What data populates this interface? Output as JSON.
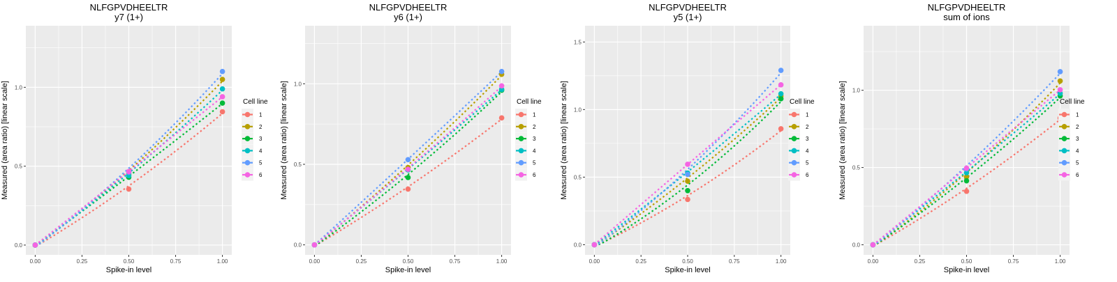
{
  "legend": {
    "title": "Cell line",
    "entries": [
      {
        "label": "1",
        "color": "#F8766D"
      },
      {
        "label": "2",
        "color": "#B79F00"
      },
      {
        "label": "3",
        "color": "#00BA38"
      },
      {
        "label": "4",
        "color": "#00BFC4"
      },
      {
        "label": "5",
        "color": "#619CFF"
      },
      {
        "label": "6",
        "color": "#F564E3"
      }
    ]
  },
  "chart_data": [
    {
      "type": "scatter",
      "title": "NLFGPVDHEELTR",
      "subtitle": "y7 (1+)",
      "xlabel": "Spike-in level",
      "ylabel": "Measured (area ratio) [linear scale]",
      "xlim": [
        -0.05,
        1.05
      ],
      "ylim": [
        -0.062,
        1.39
      ],
      "xticks": [
        0.0,
        0.25,
        0.5,
        0.75,
        1.0
      ],
      "xtick_labels": [
        "0.00",
        "0.25",
        "0.50",
        "0.75",
        "1.00"
      ],
      "yticks": [
        0.0,
        0.5,
        1.0
      ],
      "ytick_labels": [
        "0.0",
        "0.5",
        "1.0"
      ],
      "grid": true,
      "legend_position": "right",
      "fit_style": "dotted",
      "x": [
        0,
        0.5,
        1
      ],
      "series": [
        {
          "name": "1",
          "values": [
            0.0,
            0.355,
            0.845
          ]
        },
        {
          "name": "2",
          "values": [
            0.0,
            0.45,
            1.05
          ]
        },
        {
          "name": "3",
          "values": [
            0.0,
            0.43,
            0.9
          ]
        },
        {
          "name": "4",
          "values": [
            0.0,
            0.44,
            0.99
          ]
        },
        {
          "name": "5",
          "values": [
            0.0,
            0.46,
            1.1
          ]
        },
        {
          "name": "6",
          "values": [
            0.0,
            0.466,
            0.94
          ]
        }
      ]
    },
    {
      "type": "scatter",
      "title": "NLFGPVDHEELTR",
      "subtitle": "y6 (1+)",
      "xlabel": "Spike-in level",
      "ylabel": "Measured (area ratio) [linear scale]",
      "xlim": [
        -0.05,
        1.05
      ],
      "ylim": [
        -0.062,
        1.36
      ],
      "xticks": [
        0.0,
        0.25,
        0.5,
        0.75,
        1.0
      ],
      "xtick_labels": [
        "0.00",
        "0.25",
        "0.50",
        "0.75",
        "1.00"
      ],
      "yticks": [
        0.0,
        0.5,
        1.0
      ],
      "ytick_labels": [
        "0.0",
        "0.5",
        "1.0"
      ],
      "grid": true,
      "legend_position": "right",
      "fit_style": "dotted",
      "x": [
        0,
        0.5,
        1
      ],
      "series": [
        {
          "name": "1",
          "values": [
            0.0,
            0.346,
            0.788
          ]
        },
        {
          "name": "2",
          "values": [
            0.0,
            0.48,
            1.059
          ]
        },
        {
          "name": "3",
          "values": [
            0.0,
            0.418,
            0.96
          ]
        },
        {
          "name": "4",
          "values": [
            0.0,
            0.465,
            0.965
          ]
        },
        {
          "name": "5",
          "values": [
            0.0,
            0.529,
            1.076
          ]
        },
        {
          "name": "6",
          "values": [
            0.0,
            0.469,
            0.987
          ]
        }
      ]
    },
    {
      "type": "scatter",
      "title": "NLFGPVDHEELTR",
      "subtitle": "y5 (1+)",
      "xlabel": "Spike-in level",
      "ylabel": "Measured (area ratio) [linear scale]",
      "xlim": [
        -0.05,
        1.05
      ],
      "ylim": [
        -0.075,
        1.62
      ],
      "xticks": [
        0.0,
        0.25,
        0.5,
        0.75,
        1.0
      ],
      "xtick_labels": [
        "0.00",
        "0.25",
        "0.50",
        "0.75",
        "1.00"
      ],
      "yticks": [
        0.0,
        0.5,
        1.0,
        1.5
      ],
      "ytick_labels": [
        "0.0",
        "0.5",
        "1.0",
        "1.5"
      ],
      "grid": true,
      "legend_position": "right",
      "fit_style": "dotted",
      "x": [
        0,
        0.5,
        1
      ],
      "series": [
        {
          "name": "1",
          "values": [
            0.0,
            0.335,
            0.858
          ]
        },
        {
          "name": "2",
          "values": [
            0.0,
            0.47,
            1.1
          ]
        },
        {
          "name": "3",
          "values": [
            0.0,
            0.4,
            1.08
          ]
        },
        {
          "name": "4",
          "values": [
            0.0,
            0.53,
            1.117
          ]
        },
        {
          "name": "5",
          "values": [
            0.0,
            0.52,
            1.29
          ]
        },
        {
          "name": "6",
          "values": [
            0.0,
            0.595,
            1.183
          ]
        }
      ]
    },
    {
      "type": "scatter",
      "title": "NLFGPVDHEELTR",
      "subtitle": "sum of ions",
      "xlabel": "Spike-in level",
      "ylabel": "Measured (area ratio) [linear scale]",
      "xlim": [
        -0.05,
        1.05
      ],
      "ylim": [
        -0.065,
        1.417
      ],
      "xticks": [
        0.0,
        0.25,
        0.5,
        0.75,
        1.0
      ],
      "xtick_labels": [
        "0.00",
        "0.25",
        "0.50",
        "0.75",
        "1.00"
      ],
      "yticks": [
        0.0,
        0.5,
        1.0
      ],
      "ytick_labels": [
        "0.0",
        "0.5",
        "1.0"
      ],
      "grid": true,
      "legend_position": "right",
      "fit_style": "dotted",
      "x": [
        0,
        0.5,
        1
      ],
      "series": [
        {
          "name": "1",
          "values": [
            0.0,
            0.346,
            0.82
          ]
        },
        {
          "name": "2",
          "values": [
            0.0,
            0.44,
            1.06
          ]
        },
        {
          "name": "3",
          "values": [
            0.0,
            0.414,
            0.963
          ]
        },
        {
          "name": "4",
          "values": [
            0.0,
            0.466,
            0.98
          ]
        },
        {
          "name": "5",
          "values": [
            0.0,
            0.49,
            1.12
          ]
        },
        {
          "name": "6",
          "values": [
            0.0,
            0.496,
            1.003
          ]
        }
      ]
    }
  ]
}
